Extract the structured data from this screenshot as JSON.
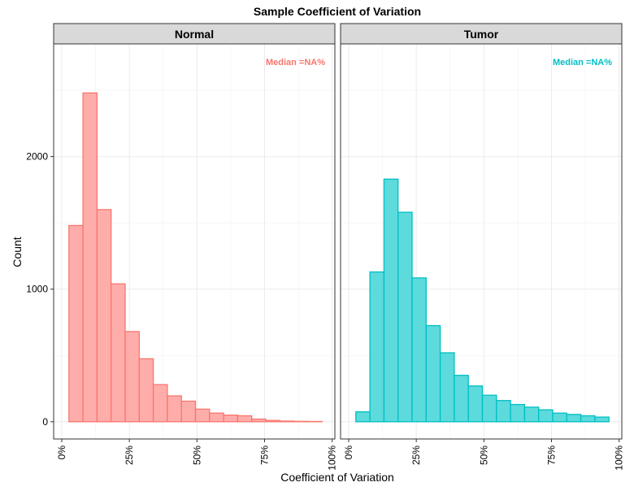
{
  "chart_data": {
    "type": "bar",
    "title": "Sample Coefficient of Variation",
    "xlabel": "Coefficient of Variation",
    "ylabel": "Count",
    "xlim": [
      -0.03,
      1.01
    ],
    "ylim": [
      -130,
      2850
    ],
    "x_ticks": [
      0,
      0.25,
      0.5,
      0.75,
      1.0
    ],
    "x_tick_labels": [
      "0%",
      "25%",
      "50%",
      "75%",
      "100%"
    ],
    "y_ticks": [
      0,
      1000,
      2000
    ],
    "y_tick_labels": [
      "0",
      "1000",
      "2000"
    ],
    "grid": true,
    "panels": [
      {
        "name": "Normal",
        "annotation": "Median =NA%",
        "color": "#f8766d",
        "fill": "#ffadab",
        "bin_edges": [
          0.0265,
          0.0785,
          0.1305,
          0.1825,
          0.2345,
          0.2865,
          0.3385,
          0.3905,
          0.4425,
          0.4945,
          0.5465,
          0.5985,
          0.6505,
          0.7025,
          0.7545,
          0.8065,
          0.8585,
          0.9105,
          0.9625
        ],
        "values": [
          1480,
          2480,
          1600,
          1040,
          680,
          475,
          280,
          195,
          155,
          95,
          65,
          50,
          45,
          20,
          10,
          5,
          3,
          2
        ]
      },
      {
        "name": "Tumor",
        "annotation": "Median =NA%",
        "color": "#00bfc4",
        "fill": "#5cdadc",
        "bin_edges": [
          0.0265,
          0.0785,
          0.1305,
          0.1825,
          0.2345,
          0.2865,
          0.3385,
          0.3905,
          0.4425,
          0.4945,
          0.5465,
          0.5985,
          0.6505,
          0.7025,
          0.7545,
          0.8065,
          0.8585,
          0.9105,
          0.9625
        ],
        "values": [
          75,
          1130,
          1830,
          1580,
          1085,
          725,
          520,
          350,
          270,
          200,
          160,
          130,
          110,
          90,
          65,
          55,
          45,
          35
        ]
      }
    ]
  }
}
